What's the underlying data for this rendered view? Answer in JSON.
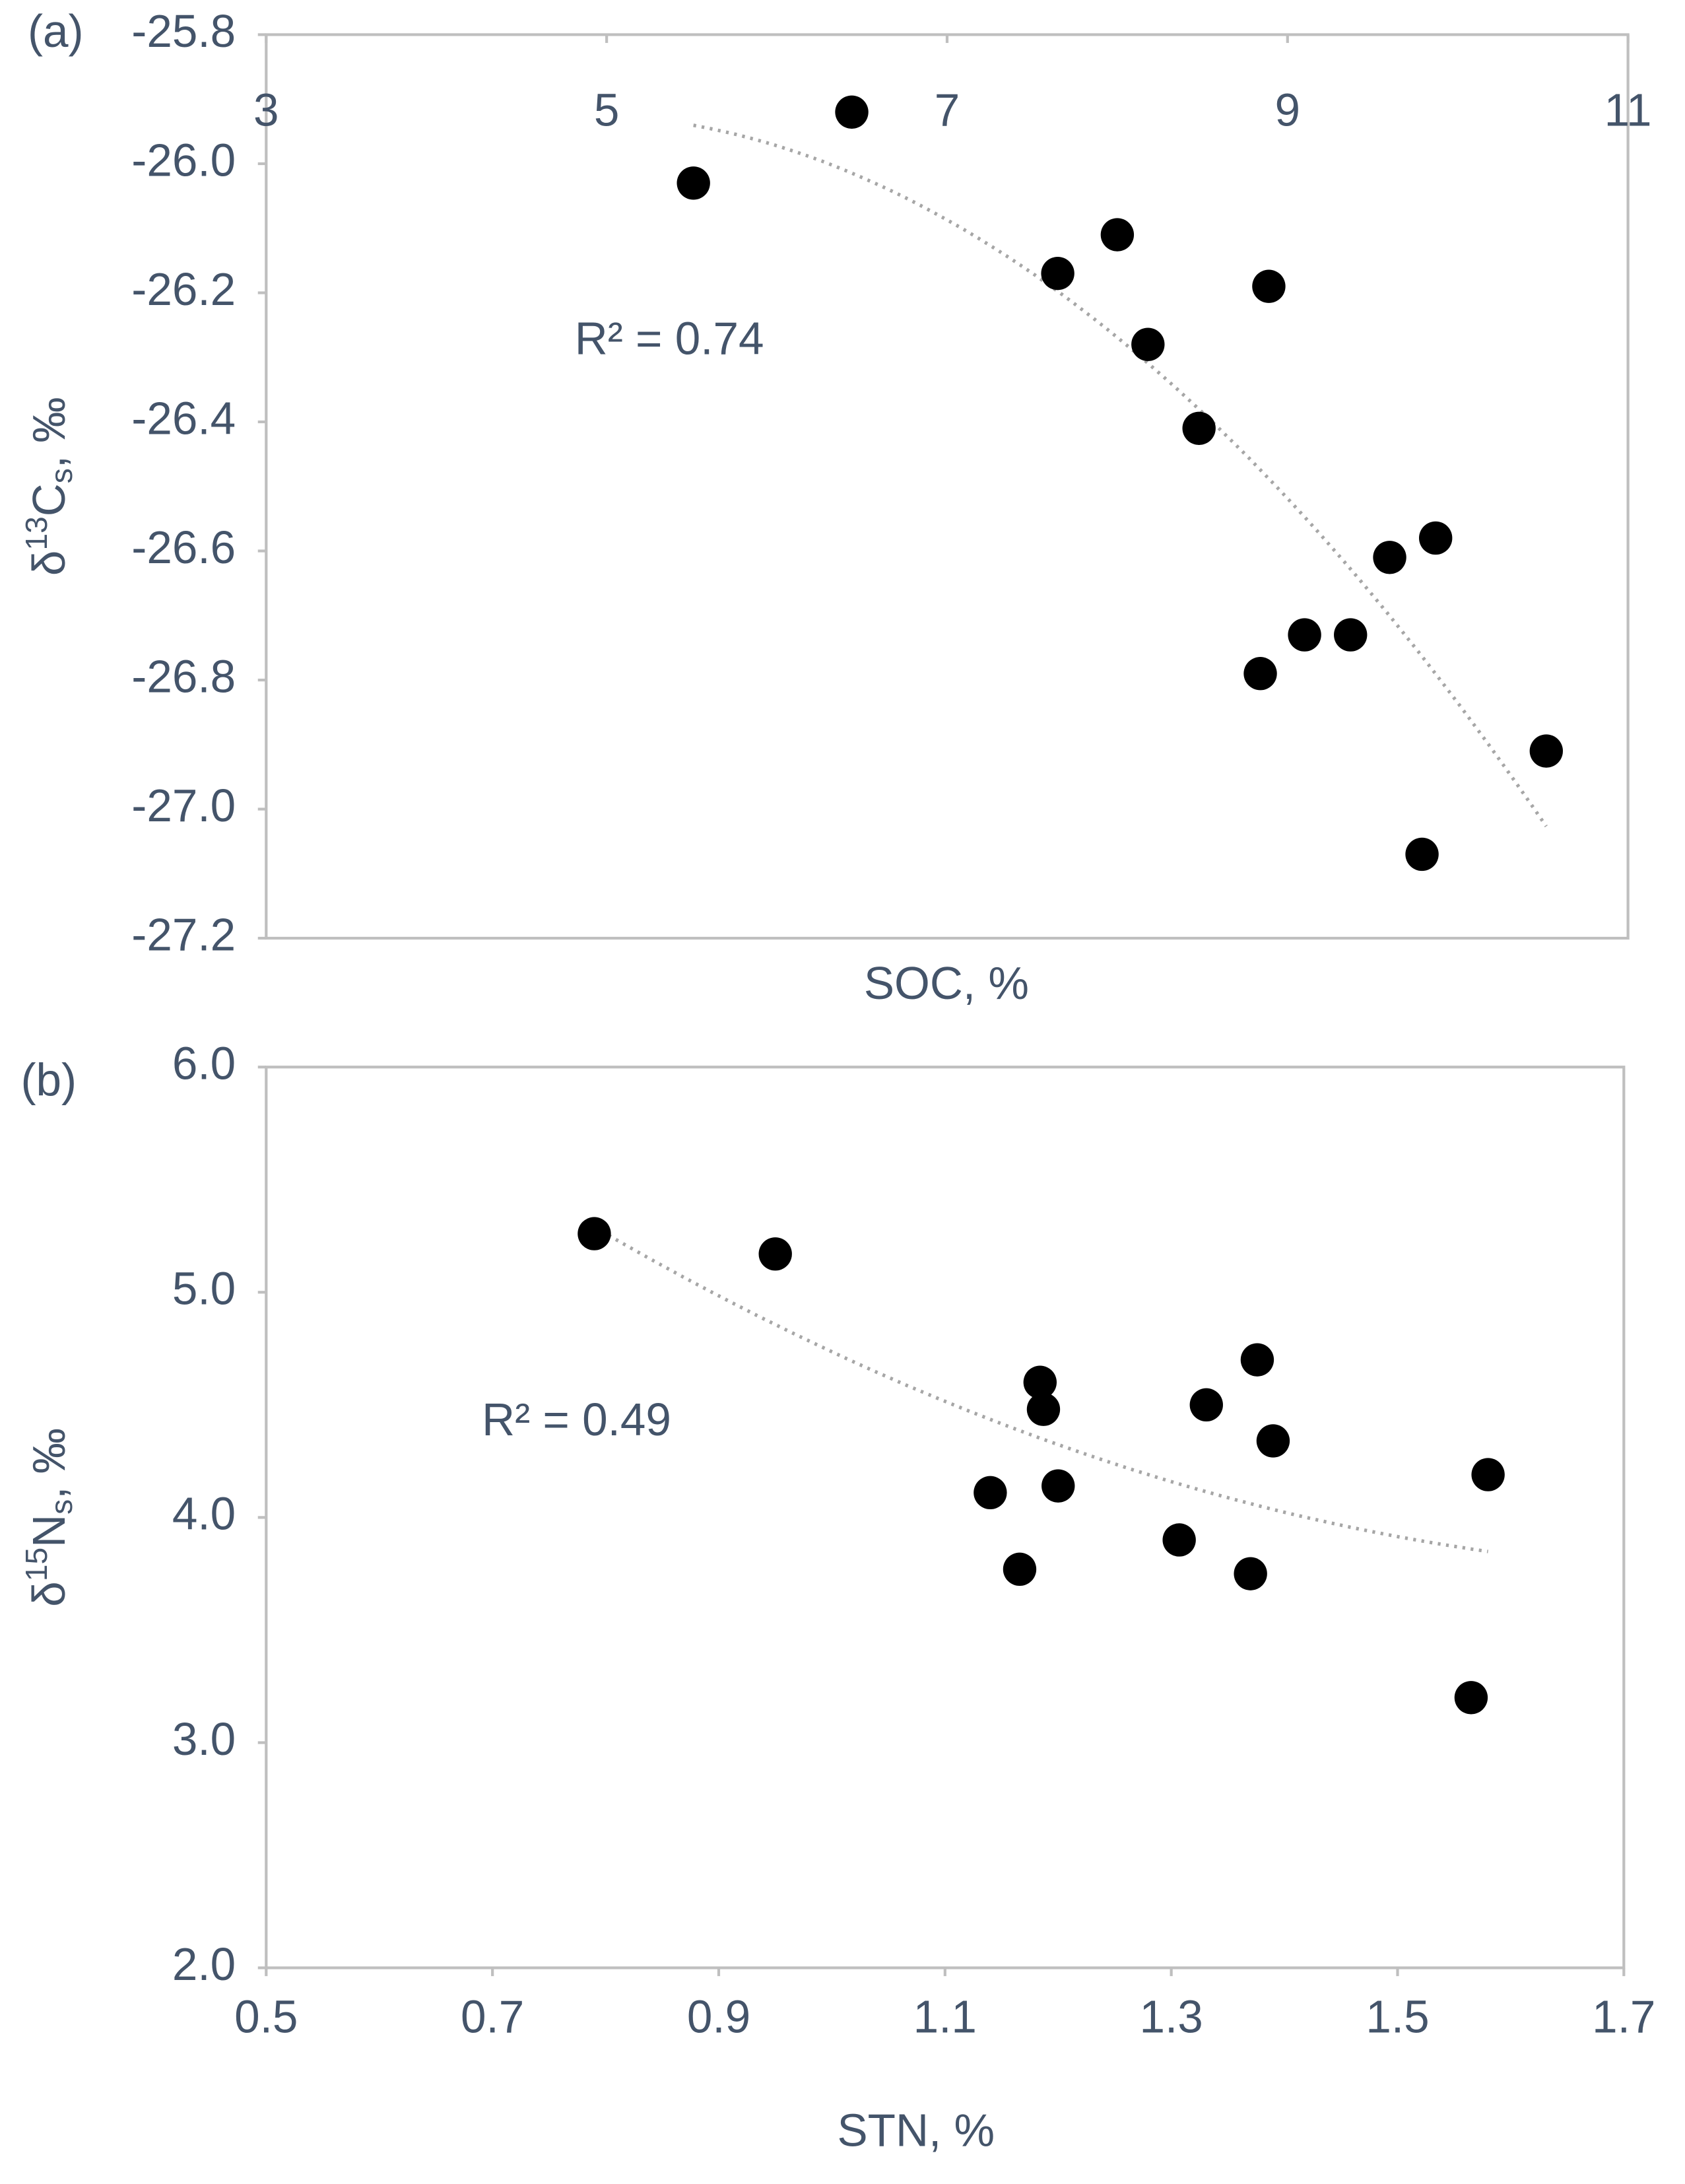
{
  "chart_data": [
    {
      "type": "scatter",
      "panel_label": "(a)",
      "xlabel": "SOC, %",
      "ylabel_parts": [
        "δ",
        "13",
        "C",
        "s",
        ", ‰"
      ],
      "annotation": "R² = 0.74",
      "trendline": {
        "kind": "polynomial",
        "order": 2
      },
      "xaxis_position": "top",
      "color": "#000000",
      "x": [
        5.51,
        6.44,
        7.65,
        8.0,
        8.18,
        8.48,
        8.89,
        9.6,
        9.87,
        9.1,
        9.37,
        8.84,
        10.52,
        9.79
      ],
      "values": [
        -26.03,
        -25.92,
        -26.17,
        -26.11,
        -26.28,
        -26.41,
        -26.19,
        -26.61,
        -26.58,
        -26.73,
        -26.73,
        -26.79,
        -26.91,
        -27.07
      ],
      "xlim": [
        3,
        11
      ],
      "xticks": [
        3,
        5,
        7,
        9,
        11
      ],
      "ylim": [
        -27.2,
        -25.8
      ],
      "yticks": [
        -25.8,
        {
          "value": -26,
          "label": "-26.0"
        },
        -26.2,
        -26.4,
        -26.6,
        -26.8,
        {
          "value": -27,
          "label": "-27.0"
        },
        -27.2
      ]
    },
    {
      "type": "scatter",
      "panel_label": "(b)",
      "xlabel": "STN, %",
      "ylabel_parts": [
        "δ",
        "15",
        "N",
        "s",
        ", ‰"
      ],
      "annotation": "R² = 0.49",
      "trendline": {
        "kind": "polynomial",
        "order": 2
      },
      "xaxis_position": "bottom",
      "color": "#000000",
      "x": [
        0.79,
        0.95,
        1.184,
        1.187,
        1.14,
        1.2,
        1.166,
        1.307,
        1.331,
        1.376,
        1.39,
        1.37,
        1.58,
        1.565
      ],
      "values": [
        5.26,
        5.17,
        4.6,
        4.48,
        4.11,
        4.14,
        3.77,
        3.9,
        4.5,
        4.7,
        4.34,
        3.75,
        4.19,
        3.2
      ],
      "xlim": [
        0.5,
        1.7
      ],
      "xticks": [
        0.5,
        0.7,
        0.9,
        1.1,
        1.3,
        1.5,
        1.7
      ],
      "ylim": [
        2,
        6
      ],
      "yticks": [
        {
          "value": 2,
          "label": "2.0"
        },
        {
          "value": 3,
          "label": "3.0"
        },
        {
          "value": 4,
          "label": "4.0"
        },
        {
          "value": 5,
          "label": "5.0"
        },
        {
          "value": 6,
          "label": "6.0"
        }
      ]
    }
  ]
}
